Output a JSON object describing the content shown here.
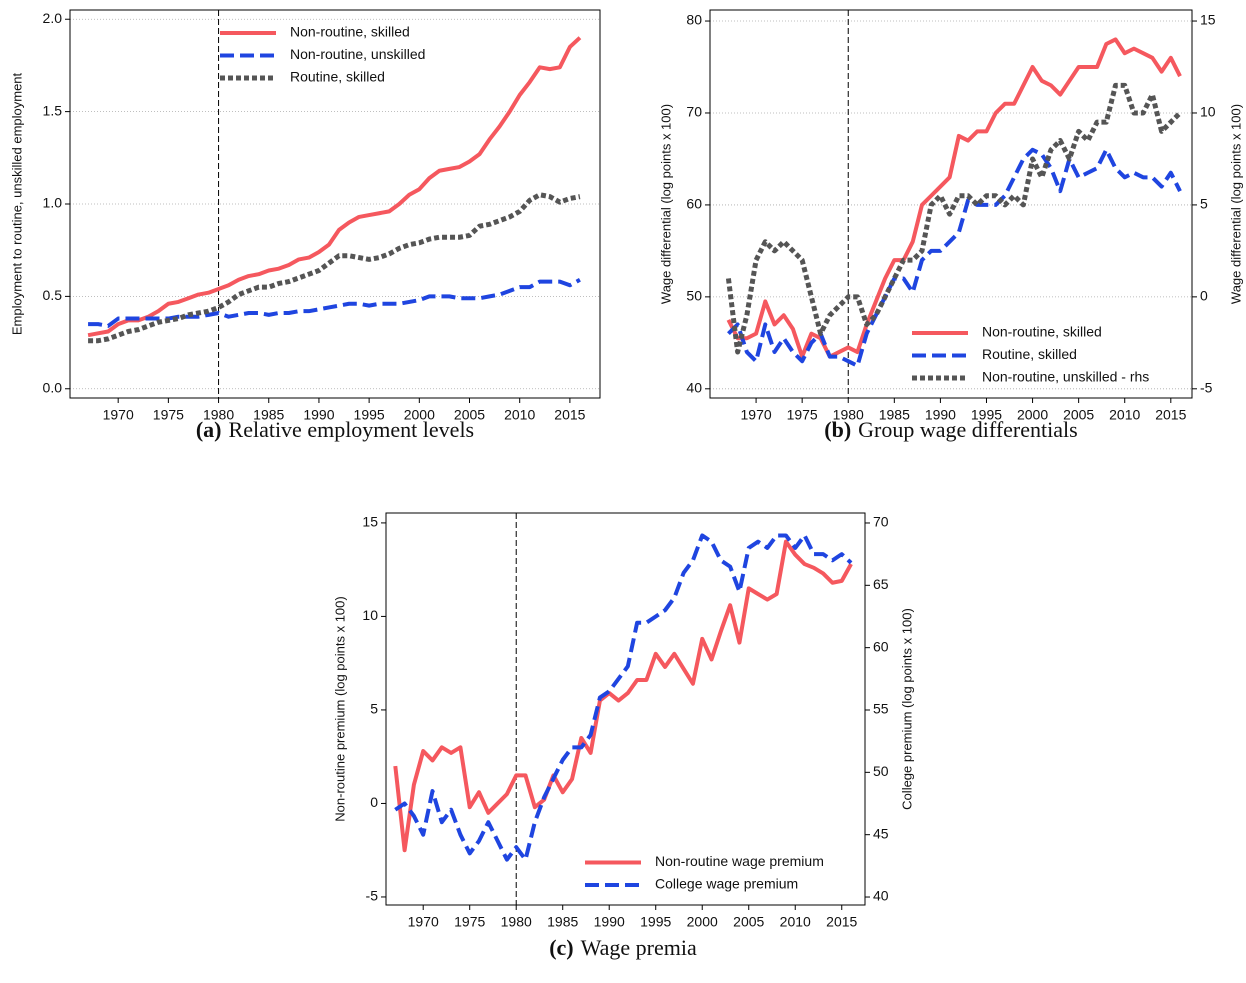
{
  "chart_data": [
    {
      "type": "line",
      "caption_label": "(a)",
      "caption": "Relative employment levels",
      "y_label": "Employment to routine, unskilled employment",
      "x": [
        1967,
        1968,
        1969,
        1970,
        1971,
        1972,
        1973,
        1974,
        1975,
        1976,
        1977,
        1978,
        1979,
        1980,
        1981,
        1982,
        1983,
        1984,
        1985,
        1986,
        1987,
        1988,
        1989,
        1990,
        1991,
        1992,
        1993,
        1994,
        1995,
        1996,
        1997,
        1998,
        1999,
        2000,
        2001,
        2002,
        2003,
        2004,
        2005,
        2006,
        2007,
        2008,
        2009,
        2010,
        2011,
        2012,
        2013,
        2014,
        2015,
        2016
      ],
      "xlim": [
        1965.2,
        2018
      ],
      "xticks": [
        1970,
        1975,
        1980,
        1985,
        1990,
        1995,
        2000,
        2005,
        2010,
        2015
      ],
      "ylim": [
        -0.05,
        2.05
      ],
      "yticks": [
        {
          "value": 0,
          "label": "0.0"
        },
        0.5,
        {
          "value": 1,
          "label": "1.0"
        },
        1.5,
        {
          "value": 2,
          "label": "2.0"
        }
      ],
      "vline": 1980,
      "grid": true,
      "legend": "upper center",
      "series": [
        {
          "name": "Non-routine, skilled",
          "color": "#f5585e",
          "style": "solid",
          "values": [
            0.29,
            0.3,
            0.31,
            0.35,
            0.37,
            0.37,
            0.39,
            0.42,
            0.46,
            0.47,
            0.49,
            0.51,
            0.52,
            0.54,
            0.56,
            0.59,
            0.61,
            0.62,
            0.64,
            0.65,
            0.67,
            0.7,
            0.71,
            0.74,
            0.78,
            0.86,
            0.9,
            0.93,
            0.94,
            0.95,
            0.96,
            1.0,
            1.05,
            1.08,
            1.14,
            1.18,
            1.19,
            1.2,
            1.23,
            1.27,
            1.35,
            1.42,
            1.5,
            1.59,
            1.66,
            1.74,
            1.73,
            1.74,
            1.85,
            1.9
          ]
        },
        {
          "name": "Non-routine, unskilled",
          "color": "#1f45e0",
          "style": "dashed",
          "values": [
            0.35,
            0.35,
            0.34,
            0.38,
            0.38,
            0.38,
            0.38,
            0.38,
            0.38,
            0.39,
            0.39,
            0.39,
            0.4,
            0.41,
            0.39,
            0.4,
            0.41,
            0.41,
            0.4,
            0.41,
            0.41,
            0.42,
            0.42,
            0.43,
            0.44,
            0.45,
            0.46,
            0.46,
            0.45,
            0.46,
            0.46,
            0.46,
            0.47,
            0.48,
            0.5,
            0.5,
            0.5,
            0.49,
            0.49,
            0.49,
            0.5,
            0.51,
            0.53,
            0.55,
            0.55,
            0.58,
            0.58,
            0.58,
            0.56,
            0.59
          ]
        },
        {
          "name": "Routine, skilled",
          "color": "#555555",
          "style": "dotted",
          "values": [
            0.26,
            0.26,
            0.27,
            0.29,
            0.31,
            0.32,
            0.34,
            0.36,
            0.37,
            0.38,
            0.4,
            0.41,
            0.42,
            0.44,
            0.47,
            0.51,
            0.53,
            0.55,
            0.55,
            0.57,
            0.58,
            0.6,
            0.62,
            0.64,
            0.68,
            0.72,
            0.72,
            0.71,
            0.7,
            0.71,
            0.73,
            0.76,
            0.78,
            0.79,
            0.81,
            0.82,
            0.82,
            0.82,
            0.83,
            0.88,
            0.89,
            0.91,
            0.93,
            0.96,
            1.02,
            1.05,
            1.04,
            1.01,
            1.03,
            1.04
          ]
        }
      ]
    },
    {
      "type": "line",
      "caption_label": "(b)",
      "caption": "Group wage differentials",
      "y_label": "Wage differential (log points x 100)",
      "y2_label": "Wage differential (log points x 100)",
      "x": [
        1967,
        1968,
        1969,
        1970,
        1971,
        1972,
        1973,
        1974,
        1975,
        1976,
        1977,
        1978,
        1979,
        1980,
        1981,
        1982,
        1983,
        1984,
        1985,
        1986,
        1987,
        1988,
        1989,
        1990,
        1991,
        1992,
        1993,
        1994,
        1995,
        1996,
        1997,
        1998,
        1999,
        2000,
        2001,
        2002,
        2003,
        2004,
        2005,
        2006,
        2007,
        2008,
        2009,
        2010,
        2011,
        2012,
        2013,
        2014,
        2015,
        2016
      ],
      "xlim": [
        1965,
        2017.3
      ],
      "xticks": [
        1970,
        1975,
        1980,
        1985,
        1990,
        1995,
        2000,
        2005,
        2010,
        2015
      ],
      "ylim": [
        39,
        81.2
      ],
      "yticks": [
        40,
        50,
        60,
        70,
        80
      ],
      "y2lim": [
        -5.5,
        15.6
      ],
      "y2ticks": [
        -5,
        0,
        5,
        10,
        15
      ],
      "vline": 1980,
      "grid": true,
      "legend": "lower right",
      "series": [
        {
          "name": "Non-routine, skilled",
          "color": "#f5585e",
          "style": "solid",
          "values": [
            47.5,
            45.5,
            45.5,
            46,
            49.5,
            47,
            48,
            46.5,
            43.5,
            46,
            45.5,
            43.5,
            44,
            44.5,
            44,
            47,
            49.5,
            52,
            54,
            54,
            56,
            60,
            61,
            62,
            63,
            67.5,
            67,
            68,
            68,
            70,
            71,
            71,
            73,
            75,
            73.5,
            73,
            72,
            73.5,
            75,
            75,
            75,
            77.5,
            78,
            76.5,
            77,
            76.5,
            76,
            74.5,
            76,
            74
          ]
        },
        {
          "name": "Routine, skilled",
          "color": "#1f45e0",
          "style": "dashed",
          "values": [
            46,
            47,
            44,
            43,
            47,
            44,
            45.5,
            44,
            43,
            45,
            46,
            43.5,
            43.5,
            43,
            42.5,
            46,
            48,
            50,
            52,
            52,
            50.5,
            54,
            55,
            55,
            56,
            57,
            60.5,
            60,
            60,
            60,
            61,
            63,
            65,
            66,
            65.5,
            64,
            61.5,
            65,
            63,
            63.5,
            64,
            66,
            64,
            63,
            63.5,
            63,
            63,
            62,
            63.5,
            61.5
          ]
        },
        {
          "name": "Non-routine, unskilled - rhs",
          "color": "#555555",
          "style": "dotted",
          "axis": "y2",
          "values": [
            1,
            -3,
            -1,
            2,
            3,
            2.5,
            3,
            2.5,
            2,
            0,
            -2,
            -1,
            -0.5,
            0,
            0,
            -1.5,
            -1,
            0,
            1,
            2,
            2,
            2.5,
            5,
            5.5,
            4.5,
            5.5,
            5.5,
            5,
            5.5,
            5.5,
            5,
            5.5,
            5,
            7.5,
            6.5,
            8,
            8.5,
            7.5,
            9,
            8.5,
            9.5,
            9.5,
            11.5,
            11.5,
            10,
            10,
            11,
            9,
            9.5,
            10
          ]
        }
      ]
    },
    {
      "type": "line",
      "caption_label": "(c)",
      "caption": "Wage premia",
      "y_label": "Non-routine premium (log points x 100)",
      "y2_label": "College premium (log points x 100)",
      "x": [
        1967,
        1968,
        1969,
        1970,
        1971,
        1972,
        1973,
        1974,
        1975,
        1976,
        1977,
        1978,
        1979,
        1980,
        1981,
        1982,
        1983,
        1984,
        1985,
        1986,
        1987,
        1988,
        1989,
        1990,
        1991,
        1992,
        1993,
        1994,
        1995,
        1996,
        1997,
        1998,
        1999,
        2000,
        2001,
        2002,
        2003,
        2004,
        2005,
        2006,
        2007,
        2008,
        2009,
        2010,
        2011,
        2012,
        2013,
        2014,
        2015,
        2016
      ],
      "xlim": [
        1966,
        2017.5
      ],
      "xticks": [
        1970,
        1975,
        1980,
        1985,
        1990,
        1995,
        2000,
        2005,
        2010,
        2015
      ],
      "ylim": [
        -5.43,
        15.53
      ],
      "yticks": [
        -5,
        0,
        5,
        10,
        15
      ],
      "y2lim": [
        39.36,
        70.8
      ],
      "y2ticks": [
        40,
        45,
        50,
        55,
        60,
        65,
        70
      ],
      "vline": 1980,
      "grid": false,
      "legend": "lower right",
      "series": [
        {
          "name": "Non-routine wage premium",
          "color": "#f5585e",
          "style": "solid",
          "values": [
            2,
            -2.5,
            1,
            2.8,
            2.3,
            3,
            2.7,
            3,
            -0.2,
            0.6,
            -0.5,
            0,
            0.5,
            1.5,
            1.5,
            -0.2,
            0.2,
            1.5,
            0.6,
            1.3,
            3.5,
            2.7,
            5.5,
            5.9,
            5.5,
            5.9,
            6.6,
            6.6,
            8,
            7.3,
            8,
            7.2,
            6.4,
            8.8,
            7.7,
            9.2,
            10.6,
            8.6,
            11.5,
            11.2,
            10.9,
            11.2,
            14,
            13.3,
            12.8,
            12.6,
            12.3,
            11.8,
            11.9,
            12.8
          ]
        },
        {
          "name": "College wage premium",
          "color": "#1f45e0",
          "style": "dashed",
          "axis": "y2",
          "values": [
            47,
            47.5,
            46.5,
            45,
            48.5,
            46,
            47,
            45,
            43.5,
            44.5,
            46,
            44.5,
            43,
            44,
            43,
            46,
            48,
            49.5,
            51,
            52,
            52,
            53,
            56,
            56.5,
            57.5,
            58.5,
            62,
            62,
            62.5,
            63,
            64,
            66,
            67,
            69,
            68.5,
            67,
            66.5,
            64.5,
            68,
            68.5,
            68,
            69,
            69,
            68,
            69,
            67.5,
            67.5,
            67,
            67.5,
            66.8
          ]
        }
      ]
    }
  ]
}
